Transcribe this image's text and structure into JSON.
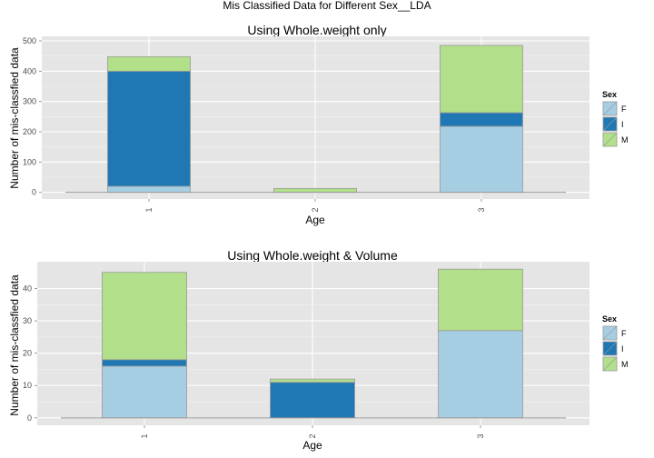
{
  "figure": {
    "title": "Mis Classified Data for Different Sex__LDA"
  },
  "colors": {
    "F": "#a6cee3",
    "I": "#1f78b4",
    "M": "#b2df8a",
    "panel_bg": "#e5e5e5",
    "grid_major": "#ffffff",
    "grid_minor": "#f2f2f2",
    "bar_outline": "#999999"
  },
  "legend": {
    "title": "Sex",
    "entries": [
      "F",
      "I",
      "M"
    ],
    "placement": "right"
  },
  "chart_data": [
    {
      "type": "bar",
      "stacked": true,
      "title": "Using Whole.weight only",
      "xlabel": "Age",
      "ylabel": "Number of mis-classfied data",
      "categories": [
        "1",
        "2",
        "3"
      ],
      "series": [
        {
          "name": "F",
          "values": [
            20,
            0,
            218
          ]
        },
        {
          "name": "I",
          "values": [
            380,
            0,
            45
          ]
        },
        {
          "name": "M",
          "values": [
            48,
            13,
            222
          ]
        }
      ],
      "ylim": [
        -22,
        515
      ],
      "yticks": [
        0,
        100,
        200,
        300,
        400,
        500
      ],
      "grid": true
    },
    {
      "type": "bar",
      "stacked": true,
      "title": "Using Whole.weight & Volume",
      "xlabel": "Age",
      "ylabel": "Number of mis-classfied data",
      "categories": [
        "1",
        "2",
        "3"
      ],
      "series": [
        {
          "name": "F",
          "values": [
            16,
            0,
            27
          ]
        },
        {
          "name": "I",
          "values": [
            2,
            11,
            0
          ]
        },
        {
          "name": "M",
          "values": [
            27,
            1,
            19
          ]
        }
      ],
      "ylim": [
        -2.3,
        48.3
      ],
      "yticks": [
        0,
        10,
        20,
        30,
        40
      ],
      "grid": true
    }
  ]
}
